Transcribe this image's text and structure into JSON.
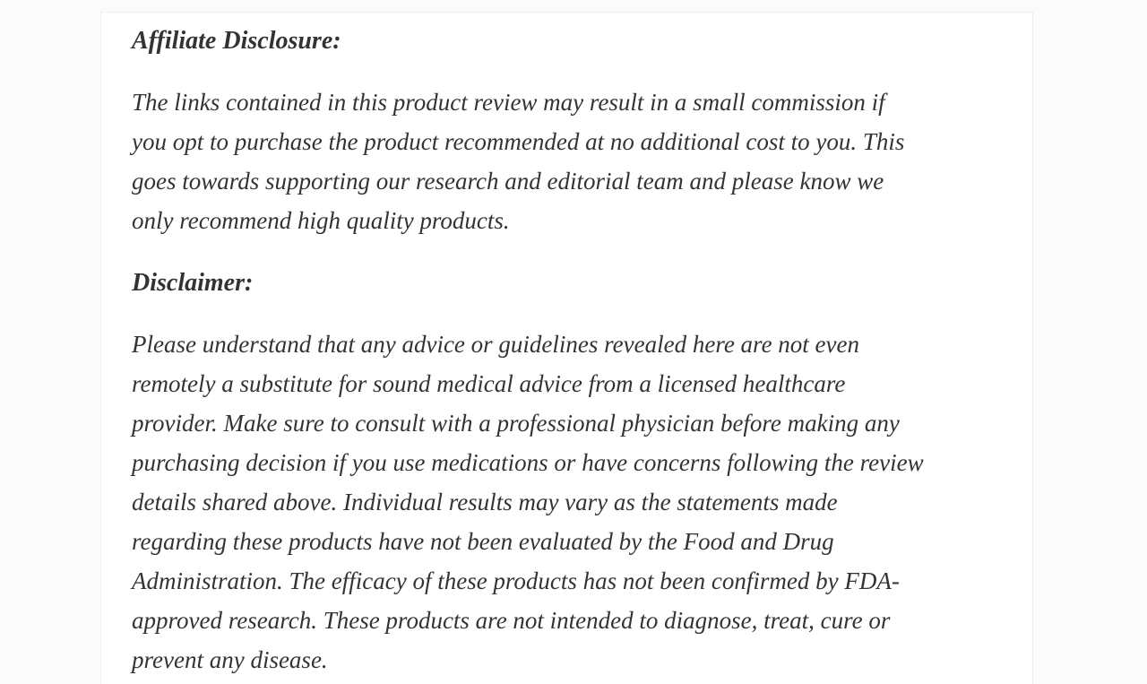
{
  "theme": {
    "page_background": "#fbfbfb",
    "card_background": "#ffffff",
    "border_color": "#efefef",
    "text_color": "#333333"
  },
  "article": {
    "sections": [
      {
        "heading": "Affiliate Disclosure:",
        "lines": [
          "The links contained in this product review may result in a small commission if",
          "you opt to purchase the product recommended at no additional cost to you. This",
          "goes towards supporting our research and editorial team and please know we",
          "only recommend high quality products."
        ]
      },
      {
        "heading": "Disclaimer:",
        "lines": [
          "Please understand that any advice or guidelines revealed here are not even",
          "remotely a substitute for sound medical advice from a licensed healthcare",
          "provider. Make sure to consult with a professional physician before making any",
          "purchasing decision if you use medications or have concerns following the review",
          "details shared above. Individual results may vary as the statements made",
          "regarding these products have not been evaluated by the Food and Drug",
          "Administration. The efficacy of these products has not been confirmed by FDA-",
          "approved research. These products are not intended to diagnose, treat, cure or",
          "prevent any disease."
        ]
      }
    ]
  }
}
